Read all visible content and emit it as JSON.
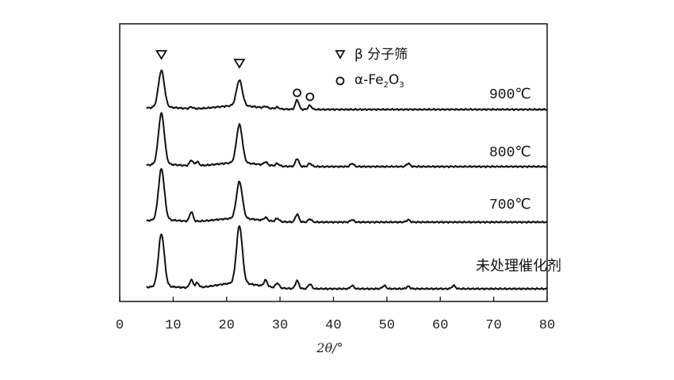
{
  "chart_data": {
    "type": "line",
    "xlabel": "2θ/°",
    "xlim": [
      0,
      80
    ],
    "xticks": [
      "0",
      "10",
      "20",
      "30",
      "40",
      "50",
      "60",
      "70",
      "80"
    ],
    "legend": [
      {
        "marker": "triangle",
        "label": "β 分子筛"
      },
      {
        "marker": "circle",
        "label": "α-Fe2O3"
      }
    ],
    "series": [
      {
        "name": "900℃",
        "peaks": [
          [
            7.8,
            46
          ],
          [
            13.4,
            2
          ],
          [
            22.4,
            32
          ],
          [
            27.3,
            2
          ],
          [
            29.5,
            2
          ],
          [
            33.2,
            12
          ],
          [
            35.6,
            5
          ]
        ]
      },
      {
        "name": "800℃",
        "peaks": [
          [
            7.8,
            64
          ],
          [
            13.4,
            7
          ],
          [
            14.5,
            5
          ],
          [
            22.4,
            48
          ],
          [
            27.3,
            4
          ],
          [
            29.5,
            3
          ],
          [
            33.2,
            10
          ],
          [
            35.6,
            4
          ],
          [
            43.5,
            4
          ],
          [
            54.0,
            4
          ]
        ]
      },
      {
        "name": "700℃",
        "peaks": [
          [
            7.8,
            64
          ],
          [
            13.4,
            12
          ],
          [
            22.4,
            46
          ],
          [
            27.3,
            4
          ],
          [
            29.5,
            4
          ],
          [
            33.2,
            10
          ],
          [
            35.6,
            4
          ],
          [
            43.5,
            3
          ],
          [
            54.0,
            3
          ]
        ]
      },
      {
        "name": "未处理催化剂",
        "peaks": [
          [
            7.8,
            66
          ],
          [
            13.4,
            10
          ],
          [
            14.5,
            6
          ],
          [
            22.4,
            72
          ],
          [
            27.3,
            8
          ],
          [
            29.5,
            6
          ],
          [
            33.2,
            10
          ],
          [
            35.6,
            6
          ],
          [
            43.5,
            4
          ],
          [
            49.5,
            4
          ],
          [
            54.0,
            3
          ],
          [
            62.5,
            4
          ]
        ]
      }
    ],
    "markers": [
      {
        "type": "triangle",
        "x": 7.8
      },
      {
        "type": "triangle",
        "x": 22.4
      },
      {
        "type": "circle",
        "x": 33.2
      },
      {
        "type": "circle",
        "x": 35.6
      }
    ]
  }
}
